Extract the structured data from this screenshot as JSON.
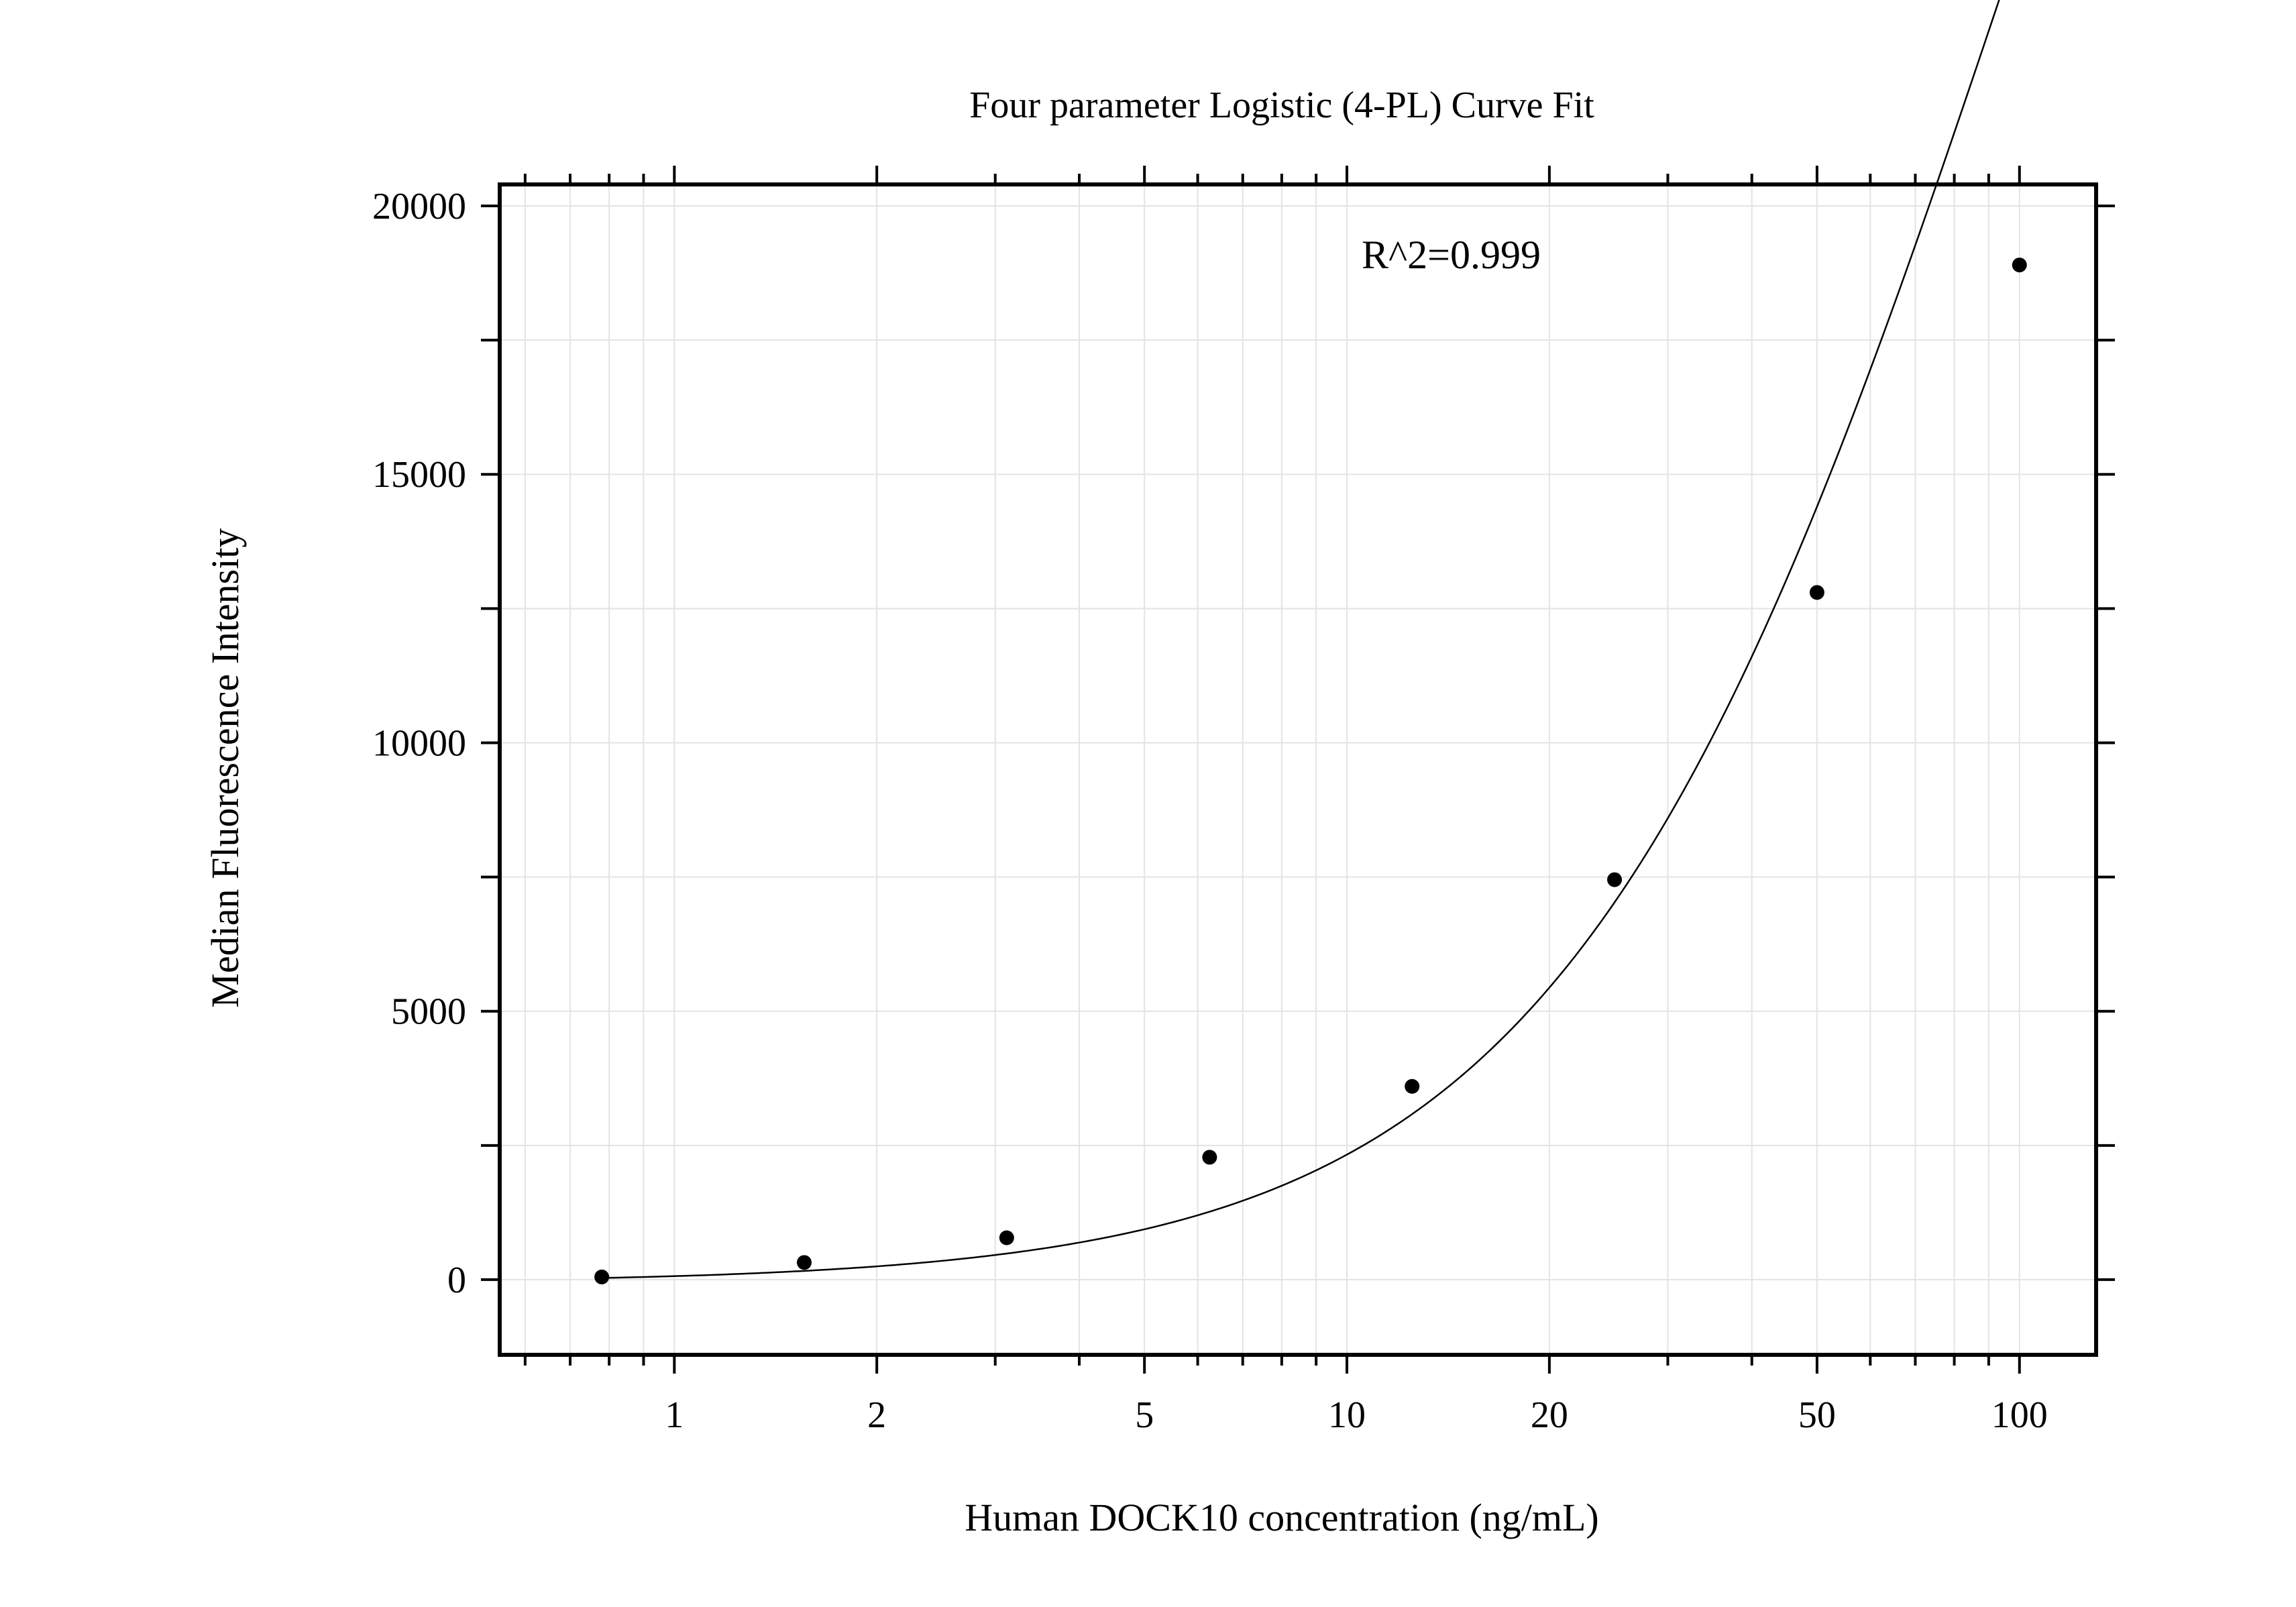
{
  "chart_data": {
    "type": "scatter",
    "title": "Four parameter Logistic (4-PL) Curve Fit",
    "xlabel": "Human DOCK10 concentration (ng/mL)",
    "ylabel": "Median Fluorescence Intensity",
    "x_scale": "log",
    "xlim": [
      0.55,
      130
    ],
    "ylim": [
      -1400,
      20400
    ],
    "x_ticks": [
      1,
      2,
      5,
      10,
      20,
      50,
      100
    ],
    "x_tick_labels": [
      "1",
      "2",
      "5",
      "10",
      "20",
      "50",
      "100"
    ],
    "y_ticks": [
      0,
      5000,
      10000,
      15000,
      20000
    ],
    "y_tick_labels": [
      "0",
      "5000",
      "10000",
      "15000",
      "20000"
    ],
    "grid": true,
    "annotation": "R^2=0.999",
    "series": [
      {
        "kind": "points",
        "x": [
          0.78,
          1.56,
          3.12,
          6.25,
          12.5,
          25,
          50,
          100
        ],
        "y": [
          50,
          320,
          780,
          2280,
          3600,
          7450,
          12800,
          18900
        ]
      },
      {
        "kind": "fit-curve",
        "model": "4PL",
        "x_range": [
          0.78,
          100
        ],
        "params": {
          "A": -60,
          "B": 1.3,
          "C": 100,
          "D": 50000
        }
      }
    ],
    "colors": {
      "points": "#000000",
      "curve": "#000000",
      "grid": "#e3e3e3",
      "frame": "#000000"
    }
  }
}
